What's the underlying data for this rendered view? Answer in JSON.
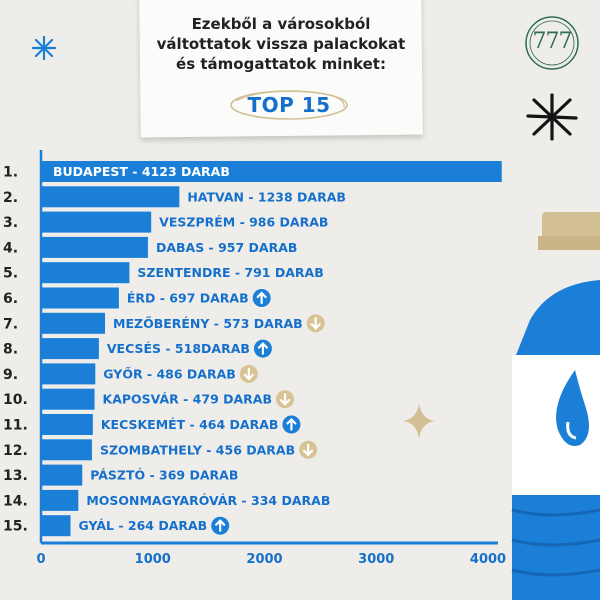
{
  "header": {
    "title_lines": [
      "Ezekből a városokból",
      "váltottatok vissza palackokat",
      "és támogattatok minket:"
    ],
    "subtitle": "TOP 15"
  },
  "logo": {
    "text": "777"
  },
  "colors": {
    "bar": "#1b7fd8",
    "label": "#1570cc",
    "arrow_up": "#1b7fd8",
    "arrow_down": "#d8c395",
    "bottle": "#1b7fd8",
    "cap": "#d2bf93"
  },
  "chart_data": {
    "type": "bar",
    "orientation": "horizontal",
    "ranks": [
      "1.",
      "2.",
      "3.",
      "4.",
      "5.",
      "6.",
      "7.",
      "8.",
      "9.",
      "10.",
      "11.",
      "12.",
      "13.",
      "14.",
      "15."
    ],
    "categories": [
      "BUDAPEST",
      "HATVAN",
      "VESZPRÉM",
      "DABAS",
      "SZENTENDRE",
      "ÉRD",
      "MEZŐBERÉNY",
      "VECSÉS",
      "GYŐR",
      "KAPOSVÁR",
      "KECSKEMÉT",
      "SZOMBATHELY",
      "PÁSZTÓ",
      "MOSONMAGYARÓVÁR",
      "GYÁL"
    ],
    "values": [
      4123,
      1238,
      986,
      957,
      791,
      697,
      573,
      518,
      486,
      479,
      464,
      456,
      369,
      334,
      264
    ],
    "data_labels": [
      "BUDAPEST - 4123 DARAB",
      "HATVAN - 1238 DARAB",
      "VESZPRÉM - 986 DARAB",
      "DABAS - 957 DARAB",
      "SZENTENDRE - 791 DARAB",
      "ÉRD - 697 DARAB",
      "MEZŐBERÉNY - 573 DARAB",
      "VECSÉS - 518DARAB",
      "GYŐR - 486 DARAB",
      "KAPOSVÁR - 479 DARAB",
      "KECSKEMÉT - 464 DARAB",
      "SZOMBATHELY - 456 DARAB",
      "PÁSZTÓ - 369 DARAB",
      "MOSONMAGYARÓVÁR - 334 DARAB",
      "GYÁL - 264 DARAB"
    ],
    "trend": [
      "",
      "",
      "",
      "",
      "",
      "up",
      "down",
      "up",
      "down",
      "down",
      "up",
      "down",
      "",
      "",
      "up"
    ],
    "xlim": [
      0,
      4000
    ],
    "xticks": [
      "0",
      "1000",
      "2000",
      "3000",
      "4000"
    ],
    "title": "",
    "xlabel": "",
    "ylabel": ""
  }
}
